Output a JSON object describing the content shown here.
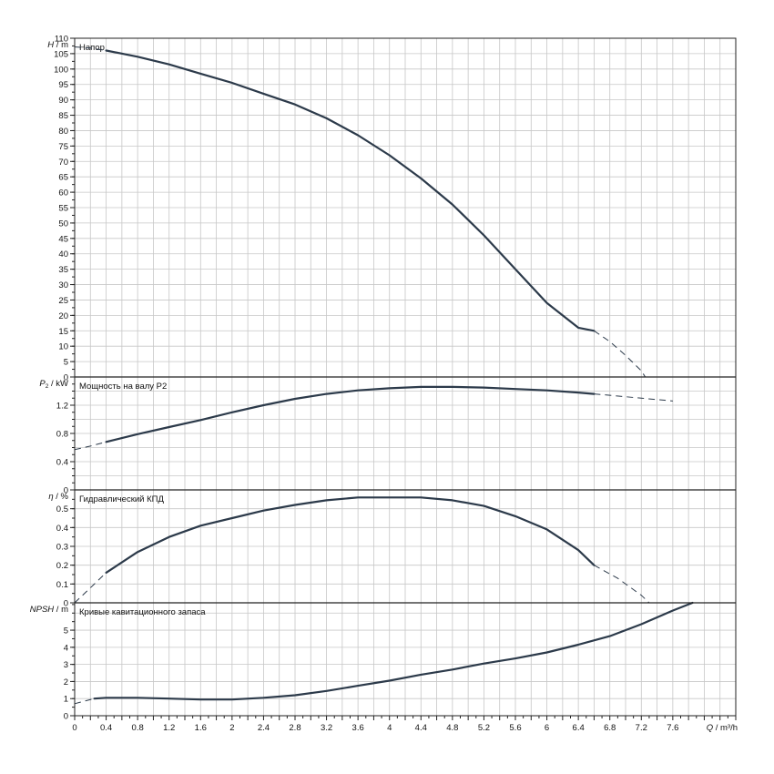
{
  "chart_data": [
    {
      "type": "line",
      "title": "Напор",
      "ylabel_italic": "H",
      "ylabel_unit": " / m",
      "xlim": [
        0,
        8.4
      ],
      "ylim": [
        0,
        110
      ],
      "yticks": [
        0,
        5,
        10,
        15,
        20,
        25,
        30,
        35,
        40,
        45,
        50,
        55,
        60,
        65,
        70,
        75,
        80,
        85,
        90,
        95,
        100,
        105,
        110
      ],
      "ytick_labels": [
        "0",
        "5",
        "10",
        "15",
        "20",
        "25",
        "30",
        "35",
        "40",
        "45",
        "50",
        "55",
        "60",
        "65",
        "70",
        "75",
        "80",
        "85",
        "90",
        "95",
        "100",
        "105",
        "110"
      ],
      "series": [
        {
          "style": "solid",
          "x": [
            0.4,
            0.8,
            1.2,
            1.6,
            2.0,
            2.4,
            2.8,
            3.2,
            3.6,
            4.0,
            4.4,
            4.8,
            5.2,
            5.6,
            6.0,
            6.4,
            6.6
          ],
          "y": [
            106,
            104,
            101.5,
            98.5,
            95.5,
            92,
            88.5,
            84,
            78.5,
            72,
            64.5,
            56,
            46,
            35,
            24,
            16,
            15
          ]
        },
        {
          "style": "dash",
          "x": [
            0,
            0.2,
            0.4
          ],
          "y": [
            107.2,
            106.8,
            106
          ]
        },
        {
          "style": "dash",
          "x": [
            6.6,
            6.8,
            7.0,
            7.2,
            7.25
          ],
          "y": [
            15,
            11.5,
            7,
            2,
            0
          ]
        }
      ]
    },
    {
      "type": "line",
      "title": "Мощность на валу P2",
      "ylabel_italic": "P",
      "ylabel_sub": "2",
      "ylabel_unit": " / kW",
      "xlim": [
        0,
        8.4
      ],
      "ylim": [
        0,
        1.6
      ],
      "yticks": [
        0,
        0.4,
        0.8,
        1.2
      ],
      "ytick_labels": [
        "0",
        "0.4",
        "0.8",
        "1.2"
      ],
      "series": [
        {
          "style": "solid",
          "x": [
            0.4,
            0.8,
            1.2,
            1.6,
            2.0,
            2.4,
            2.8,
            3.2,
            3.6,
            4.0,
            4.4,
            4.8,
            5.2,
            5.6,
            6.0,
            6.4,
            6.6
          ],
          "y": [
            0.68,
            0.79,
            0.89,
            0.99,
            1.1,
            1.2,
            1.29,
            1.36,
            1.41,
            1.44,
            1.46,
            1.46,
            1.45,
            1.43,
            1.41,
            1.38,
            1.36
          ]
        },
        {
          "style": "dash",
          "x": [
            0,
            0.2,
            0.4
          ],
          "y": [
            0.57,
            0.62,
            0.68
          ]
        },
        {
          "style": "dash",
          "x": [
            6.6,
            7.0,
            7.4,
            7.6
          ],
          "y": [
            1.36,
            1.32,
            1.28,
            1.26
          ]
        }
      ]
    },
    {
      "type": "line",
      "title": "Гидравлический КПД",
      "ylabel_italic": "η",
      "ylabel_unit": " / %",
      "xlim": [
        0,
        8.4
      ],
      "ylim": [
        0,
        0.6
      ],
      "yticks": [
        0,
        0.1,
        0.2,
        0.3,
        0.4,
        0.5
      ],
      "ytick_labels": [
        "0",
        "0.1",
        "0.2",
        "0.3",
        "0.4",
        "0.5"
      ],
      "series": [
        {
          "style": "solid",
          "x": [
            0.4,
            0.8,
            1.2,
            1.6,
            2.0,
            2.4,
            2.8,
            3.2,
            3.6,
            4.0,
            4.4,
            4.8,
            5.2,
            5.6,
            6.0,
            6.4,
            6.6
          ],
          "y": [
            0.16,
            0.27,
            0.35,
            0.41,
            0.45,
            0.49,
            0.52,
            0.545,
            0.56,
            0.56,
            0.56,
            0.545,
            0.515,
            0.46,
            0.39,
            0.28,
            0.2
          ]
        },
        {
          "style": "dash",
          "x": [
            0,
            0.2,
            0.4
          ],
          "y": [
            0,
            0.08,
            0.16
          ]
        },
        {
          "style": "dash",
          "x": [
            6.6,
            6.9,
            7.2,
            7.3
          ],
          "y": [
            0.2,
            0.13,
            0.04,
            0
          ]
        }
      ]
    },
    {
      "type": "line",
      "title": "Кривые кавитационного запаса",
      "ylabel_italic": "NPSH",
      "ylabel_unit": " / m",
      "xlim": [
        0,
        8.4
      ],
      "ylim": [
        0,
        6.6
      ],
      "yticks": [
        0,
        1,
        2,
        3,
        4,
        5
      ],
      "ytick_labels": [
        "0",
        "1",
        "2",
        "3",
        "4",
        "5"
      ],
      "xticks": [
        0,
        0.4,
        0.8,
        1.2,
        1.6,
        2,
        2.4,
        2.8,
        3.2,
        3.6,
        4,
        4.4,
        4.8,
        5.2,
        5.6,
        6,
        6.4,
        6.8,
        7.2,
        7.6
      ],
      "xtick_labels": [
        "0",
        "0.4",
        "0.8",
        "1.2",
        "1.6",
        "2",
        "2.4",
        "2.8",
        "3.2",
        "3.6",
        "4",
        "4.4",
        "4.8",
        "5.2",
        "5.6",
        "6",
        "6.4",
        "6.8",
        "7.2",
        "7.6"
      ],
      "xlabel_italic": "Q",
      "xlabel_unit": " / m³/h",
      "series": [
        {
          "style": "solid",
          "x": [
            0.25,
            0.4,
            0.8,
            1.2,
            1.6,
            2.0,
            2.4,
            2.8,
            3.2,
            3.6,
            4.0,
            4.4,
            4.8,
            5.2,
            5.6,
            6.0,
            6.4,
            6.8,
            7.2,
            7.6,
            7.85
          ],
          "y": [
            1.0,
            1.05,
            1.05,
            1.0,
            0.95,
            0.95,
            1.05,
            1.2,
            1.45,
            1.75,
            2.05,
            2.4,
            2.7,
            3.05,
            3.35,
            3.7,
            4.15,
            4.65,
            5.35,
            6.15,
            6.6
          ]
        },
        {
          "style": "dash",
          "x": [
            0,
            0.25
          ],
          "y": [
            0.7,
            1.0
          ]
        }
      ]
    }
  ]
}
